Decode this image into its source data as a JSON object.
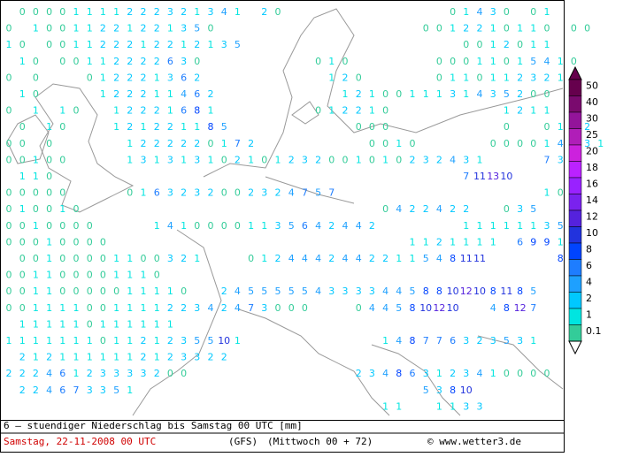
{
  "map": {
    "grid_values": [
      [
        null,
        0,
        0,
        0,
        0,
        1,
        1,
        1,
        1,
        2,
        2,
        2,
        3,
        2,
        1,
        3,
        4,
        1,
        null,
        2,
        0,
        null,
        null,
        null,
        null,
        null,
        null,
        null,
        null,
        null,
        null,
        null,
        null,
        0,
        1,
        4,
        3,
        0,
        null,
        0,
        1
      ],
      [
        0,
        null,
        1,
        0,
        0,
        1,
        1,
        2,
        2,
        1,
        2,
        2,
        1,
        3,
        5,
        0,
        null,
        null,
        null,
        null,
        null,
        null,
        null,
        null,
        null,
        null,
        null,
        null,
        null,
        null,
        null,
        0,
        0,
        1,
        2,
        2,
        1,
        0,
        1,
        1,
        0,
        null,
        0,
        0
      ],
      [
        1,
        0,
        null,
        0,
        0,
        1,
        1,
        2,
        2,
        2,
        1,
        2,
        2,
        1,
        2,
        1,
        3,
        5,
        null,
        null,
        null,
        null,
        null,
        null,
        null,
        null,
        null,
        null,
        null,
        null,
        null,
        null,
        null,
        null,
        0,
        0,
        1,
        2,
        0,
        1,
        1
      ],
      [
        null,
        1,
        0,
        null,
        0,
        0,
        1,
        1,
        2,
        2,
        2,
        2,
        6,
        3,
        0,
        null,
        null,
        null,
        null,
        null,
        null,
        null,
        null,
        0,
        1,
        0,
        null,
        null,
        null,
        null,
        null,
        null,
        0,
        0,
        0,
        1,
        1,
        0,
        1,
        5,
        4,
        1,
        0
      ],
      [
        0,
        null,
        0,
        null,
        null,
        null,
        0,
        1,
        2,
        2,
        2,
        1,
        3,
        6,
        2,
        null,
        null,
        null,
        null,
        null,
        null,
        null,
        null,
        null,
        1,
        2,
        0,
        null,
        null,
        null,
        null,
        null,
        0,
        1,
        1,
        0,
        1,
        1,
        2,
        3,
        2,
        1
      ],
      [
        null,
        1,
        0,
        null,
        null,
        null,
        null,
        1,
        2,
        2,
        2,
        1,
        1,
        4,
        6,
        2,
        null,
        null,
        null,
        null,
        null,
        null,
        null,
        null,
        null,
        1,
        2,
        1,
        0,
        0,
        1,
        1,
        1,
        3,
        1,
        4,
        3,
        5,
        2,
        0,
        0
      ],
      [
        0,
        null,
        1,
        null,
        1,
        0,
        null,
        null,
        1,
        2,
        2,
        2,
        1,
        6,
        8,
        1,
        null,
        null,
        null,
        null,
        null,
        null,
        null,
        0,
        1,
        2,
        2,
        1,
        0,
        null,
        null,
        null,
        null,
        null,
        null,
        null,
        null,
        1,
        2,
        1,
        1
      ],
      [
        null,
        0,
        null,
        1,
        0,
        null,
        null,
        null,
        1,
        2,
        1,
        2,
        2,
        1,
        1,
        8,
        5,
        null,
        null,
        null,
        null,
        null,
        null,
        null,
        null,
        null,
        0,
        0,
        0,
        null,
        null,
        null,
        null,
        null,
        null,
        null,
        null,
        0,
        null,
        null,
        0,
        1,
        2,
        2
      ],
      [
        0,
        0,
        null,
        0,
        null,
        null,
        null,
        null,
        null,
        1,
        2,
        2,
        2,
        2,
        2,
        0,
        1,
        7,
        2,
        null,
        null,
        null,
        null,
        null,
        null,
        null,
        null,
        0,
        0,
        1,
        0,
        null,
        null,
        null,
        null,
        null,
        0,
        0,
        0,
        0,
        1,
        4,
        4,
        3,
        1
      ],
      [
        0,
        0,
        1,
        0,
        0,
        null,
        null,
        null,
        null,
        1,
        3,
        1,
        3,
        1,
        3,
        1,
        0,
        2,
        1,
        0,
        1,
        2,
        3,
        2,
        0,
        0,
        1,
        0,
        1,
        0,
        2,
        3,
        2,
        4,
        3,
        1,
        null,
        null,
        null,
        null,
        7,
        3,
        1
      ],
      [
        null,
        1,
        1,
        0,
        null,
        null,
        null,
        null,
        null,
        null,
        null,
        null,
        null,
        null,
        null,
        null,
        null,
        null,
        null,
        null,
        null,
        null,
        null,
        null,
        null,
        null,
        null,
        null,
        null,
        null,
        null,
        null,
        null,
        null,
        7,
        11,
        13,
        10,
        null,
        null,
        null,
        null,
        0
      ],
      [
        0,
        0,
        0,
        0,
        0,
        null,
        null,
        null,
        null,
        0,
        1,
        6,
        3,
        2,
        3,
        2,
        0,
        0,
        2,
        3,
        2,
        4,
        7,
        5,
        7,
        null,
        null,
        null,
        null,
        null,
        null,
        null,
        null,
        null,
        null,
        null,
        null,
        null,
        null,
        null,
        1,
        0
      ],
      [
        0,
        1,
        0,
        0,
        1,
        0,
        null,
        null,
        null,
        null,
        null,
        null,
        null,
        null,
        null,
        null,
        null,
        null,
        null,
        null,
        null,
        null,
        null,
        null,
        null,
        null,
        null,
        null,
        0,
        4,
        2,
        2,
        4,
        2,
        2,
        null,
        null,
        0,
        3,
        5
      ],
      [
        0,
        0,
        1,
        0,
        0,
        0,
        0,
        null,
        null,
        null,
        null,
        1,
        4,
        1,
        0,
        0,
        0,
        0,
        1,
        1,
        3,
        5,
        6,
        4,
        2,
        4,
        4,
        2,
        null,
        null,
        null,
        null,
        null,
        null,
        1,
        1,
        1,
        1,
        1,
        1,
        3,
        5
      ],
      [
        0,
        0,
        0,
        1,
        0,
        0,
        0,
        0,
        null,
        null,
        null,
        null,
        null,
        null,
        null,
        null,
        null,
        null,
        null,
        null,
        null,
        null,
        null,
        null,
        null,
        null,
        null,
        null,
        null,
        null,
        1,
        1,
        2,
        1,
        1,
        1,
        1,
        null,
        6,
        9,
        9,
        1
      ],
      [
        null,
        0,
        0,
        1,
        0,
        0,
        0,
        0,
        1,
        1,
        0,
        0,
        3,
        2,
        1,
        null,
        null,
        null,
        0,
        1,
        2,
        4,
        4,
        4,
        2,
        4,
        4,
        2,
        2,
        1,
        1,
        5,
        4,
        8,
        11,
        11,
        null,
        null,
        null,
        null,
        null,
        8,
        5
      ],
      [
        0,
        0,
        1,
        1,
        0,
        0,
        0,
        0,
        1,
        1,
        1,
        0,
        null,
        null,
        null,
        null,
        null,
        null,
        null,
        null,
        null,
        null,
        null,
        null,
        null,
        null,
        null,
        null,
        null,
        null,
        null,
        null,
        null,
        null,
        null,
        null,
        null,
        null,
        null,
        null,
        null,
        null,
        null
      ],
      [
        0,
        0,
        1,
        1,
        0,
        0,
        0,
        0,
        0,
        1,
        1,
        1,
        1,
        0,
        null,
        null,
        2,
        4,
        5,
        5,
        5,
        5,
        5,
        4,
        3,
        3,
        3,
        3,
        4,
        4,
        5,
        8,
        8,
        10,
        12,
        10,
        8,
        11,
        8,
        5
      ],
      [
        0,
        0,
        1,
        1,
        1,
        1,
        0,
        0,
        1,
        1,
        1,
        1,
        2,
        2,
        3,
        4,
        2,
        4,
        7,
        3,
        0,
        0,
        0,
        null,
        null,
        null,
        0,
        4,
        4,
        5,
        8,
        10,
        12,
        10,
        null,
        null,
        4,
        8,
        12,
        7
      ],
      [
        null,
        1,
        1,
        1,
        1,
        1,
        0,
        1,
        1,
        1,
        1,
        1,
        1,
        null,
        null,
        null,
        null,
        null,
        null,
        null,
        null,
        null,
        null,
        null,
        null,
        null,
        null,
        null,
        null,
        null,
        null,
        null,
        null,
        null,
        null,
        null,
        null,
        null,
        null,
        null
      ],
      [
        1,
        1,
        1,
        1,
        1,
        1,
        1,
        0,
        1,
        1,
        2,
        1,
        2,
        3,
        5,
        5,
        10,
        1,
        null,
        null,
        null,
        null,
        null,
        null,
        null,
        null,
        null,
        null,
        1,
        4,
        8,
        7,
        7,
        6,
        3,
        2,
        3,
        5,
        3,
        1
      ],
      [
        null,
        2,
        1,
        2,
        1,
        1,
        1,
        1,
        1,
        1,
        2,
        1,
        2,
        3,
        3,
        2,
        2,
        null,
        null,
        null,
        null,
        null,
        null,
        null,
        null,
        null,
        null,
        null,
        null,
        null,
        null,
        null,
        null,
        null,
        null,
        null,
        null,
        null,
        null,
        null,
        null,
        null,
        null
      ],
      [
        2,
        2,
        2,
        4,
        6,
        1,
        2,
        3,
        3,
        3,
        3,
        2,
        0,
        0,
        null,
        null,
        null,
        null,
        null,
        null,
        null,
        null,
        null,
        null,
        null,
        null,
        2,
        3,
        4,
        8,
        6,
        3,
        1,
        2,
        3,
        4,
        1,
        0,
        0,
        0,
        0
      ],
      [
        null,
        2,
        2,
        4,
        6,
        7,
        3,
        3,
        5,
        1,
        null,
        null,
        null,
        null,
        null,
        null,
        null,
        null,
        null,
        null,
        null,
        null,
        null,
        null,
        null,
        null,
        null,
        null,
        null,
        null,
        null,
        5,
        3,
        8,
        10,
        null,
        null,
        null,
        null,
        null,
        null
      ],
      [
        null,
        null,
        null,
        null,
        null,
        null,
        null,
        null,
        null,
        null,
        null,
        null,
        null,
        null,
        null,
        null,
        null,
        null,
        null,
        null,
        null,
        null,
        null,
        null,
        null,
        null,
        null,
        null,
        1,
        1,
        null,
        null,
        1,
        1,
        3,
        3,
        null,
        null,
        null,
        null
      ]
    ],
    "legend": {
      "levels": [
        50,
        40,
        30,
        25,
        20,
        18,
        16,
        14,
        12,
        10,
        8,
        6,
        4,
        2,
        1,
        0.1
      ],
      "colors": [
        "#66004d",
        "#7a0a6e",
        "#93149a",
        "#b01eb8",
        "#cc22dd",
        "#bb22ff",
        "#9922ff",
        "#7a22ee",
        "#5522dd",
        "#2233dd",
        "#0044ff",
        "#1e7dff",
        "#1ea0ff",
        "#00c8ff",
        "#00e5e0",
        "#33cc99"
      ]
    },
    "footer": {
      "caption": "6 – stuendiger Niederschlag bis Samstag 00 UTC [mm]",
      "date": "Samstag, 22-11-2008  00 UTC",
      "model": "(GFS)",
      "run": "(Mittwoch 00 + 72)",
      "credit": "© www.wetter3.de"
    }
  }
}
